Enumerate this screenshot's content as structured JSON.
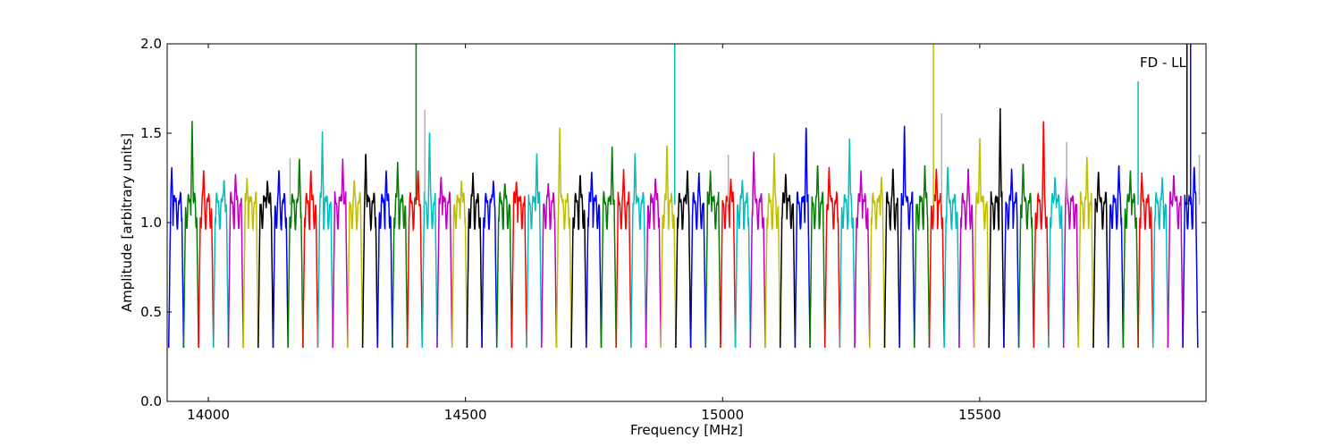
{
  "chart_data": {
    "type": "line",
    "title": "",
    "xlabel": "Frequency [MHz]",
    "ylabel": "Amplitude [arbitrary units]",
    "annotation": "FD - LL",
    "xlim": [
      13920,
      15940
    ],
    "ylim": [
      0.0,
      2.0
    ],
    "xticks": [
      14000,
      14500,
      15000,
      15500
    ],
    "xtick_labels": [
      "14000",
      "14500",
      "15000",
      "15500"
    ],
    "yticks": [
      0.0,
      0.5,
      1.0,
      1.5,
      2.0
    ],
    "ytick_labels": [
      "0.0",
      "0.5",
      "1.0",
      "1.5",
      "2.0"
    ],
    "grid": false,
    "legend": "none",
    "color_cycle": [
      "#0000ff",
      "#008000",
      "#ff0000",
      "#00bfbf",
      "#bf00bf",
      "#bfbf00",
      "#000000"
    ],
    "reference_line_color": "#b0b0b0",
    "series_note": "Repeating sub-band segments, each ~29 MHz wide: deep drop to ~0.3 at band edges, ~1.0-1.4 in-band with ripple; colors cycle blue, green, red, cyan, magenta, yellow, black.",
    "band_peaks": [
      {
        "x0": 13923,
        "x1": 13952,
        "peak": 1.31,
        "color": "#0000ff"
      },
      {
        "x0": 13952,
        "x1": 13981,
        "peak": 1.59,
        "color": "#008000"
      },
      {
        "x0": 13981,
        "x1": 14010,
        "peak": 1.31,
        "color": "#ff0000"
      },
      {
        "x0": 14010,
        "x1": 14039,
        "peak": 1.25,
        "color": "#00bfbf"
      },
      {
        "x0": 14039,
        "x1": 14068,
        "peak": 1.28,
        "color": "#bf00bf"
      },
      {
        "x0": 14068,
        "x1": 14097,
        "peak": 1.25,
        "color": "#bfbf00"
      },
      {
        "x0": 14097,
        "x1": 14126,
        "peak": 1.24,
        "color": "#000000"
      },
      {
        "x0": 14126,
        "x1": 14155,
        "peak": 1.31,
        "color": "#0000ff"
      },
      {
        "x0": 14155,
        "x1": 14184,
        "peak": 1.38,
        "color": "#008000"
      },
      {
        "x0": 14184,
        "x1": 14213,
        "peak": 1.3,
        "color": "#ff0000"
      },
      {
        "x0": 14213,
        "x1": 14242,
        "peak": 1.51,
        "color": "#00bfbf"
      },
      {
        "x0": 14242,
        "x1": 14271,
        "peak": 1.37,
        "color": "#bf00bf"
      },
      {
        "x0": 14271,
        "x1": 14300,
        "peak": 1.25,
        "color": "#bfbf00"
      },
      {
        "x0": 14300,
        "x1": 14329,
        "peak": 1.41,
        "color": "#000000"
      },
      {
        "x0": 14329,
        "x1": 14358,
        "peak": 1.3,
        "color": "#0000ff"
      },
      {
        "x0": 14358,
        "x1": 14387,
        "peak": 1.34,
        "color": "#008000"
      },
      {
        "x0": 14387,
        "x1": 14416,
        "peak": 1.3,
        "color": "#ff0000"
      },
      {
        "x0": 14416,
        "x1": 14445,
        "peak": 1.54,
        "color": "#00bfbf"
      },
      {
        "x0": 14445,
        "x1": 14474,
        "peak": 1.27,
        "color": "#bf00bf"
      },
      {
        "x0": 14474,
        "x1": 14503,
        "peak": 1.24,
        "color": "#bfbf00"
      },
      {
        "x0": 14503,
        "x1": 14532,
        "peak": 1.28,
        "color": "#000000"
      },
      {
        "x0": 14532,
        "x1": 14561,
        "peak": 1.24,
        "color": "#0000ff"
      },
      {
        "x0": 14561,
        "x1": 14590,
        "peak": 1.23,
        "color": "#008000"
      },
      {
        "x0": 14590,
        "x1": 14619,
        "peak": 1.24,
        "color": "#ff0000"
      },
      {
        "x0": 14619,
        "x1": 14648,
        "peak": 1.4,
        "color": "#00bfbf"
      },
      {
        "x0": 14648,
        "x1": 14677,
        "peak": 1.22,
        "color": "#bf00bf"
      },
      {
        "x0": 14677,
        "x1": 14706,
        "peak": 1.55,
        "color": "#bfbf00"
      },
      {
        "x0": 14706,
        "x1": 14735,
        "peak": 1.28,
        "color": "#000000"
      },
      {
        "x0": 14735,
        "x1": 14764,
        "peak": 1.3,
        "color": "#0000ff"
      },
      {
        "x0": 14764,
        "x1": 14793,
        "peak": 1.44,
        "color": "#008000"
      },
      {
        "x0": 14793,
        "x1": 14822,
        "peak": 1.3,
        "color": "#ff0000"
      },
      {
        "x0": 14822,
        "x1": 14851,
        "peak": 1.4,
        "color": "#00bfbf"
      },
      {
        "x0": 14851,
        "x1": 14880,
        "peak": 1.26,
        "color": "#bf00bf"
      },
      {
        "x0": 14880,
        "x1": 14909,
        "peak": 1.46,
        "color": "#bfbf00"
      },
      {
        "x0": 14909,
        "x1": 14938,
        "peak": 1.3,
        "color": "#000000"
      },
      {
        "x0": 14938,
        "x1": 14967,
        "peak": 1.28,
        "color": "#0000ff"
      },
      {
        "x0": 14967,
        "x1": 14996,
        "peak": 1.3,
        "color": "#008000"
      },
      {
        "x0": 14996,
        "x1": 15025,
        "peak": 1.26,
        "color": "#ff0000"
      },
      {
        "x0": 15025,
        "x1": 15054,
        "peak": 1.25,
        "color": "#00bfbf"
      },
      {
        "x0": 15054,
        "x1": 15083,
        "peak": 1.41,
        "color": "#bf00bf"
      },
      {
        "x0": 15083,
        "x1": 15112,
        "peak": 1.39,
        "color": "#bfbf00"
      },
      {
        "x0": 15112,
        "x1": 15141,
        "peak": 1.28,
        "color": "#000000"
      },
      {
        "x0": 15141,
        "x1": 15170,
        "peak": 1.57,
        "color": "#0000ff"
      },
      {
        "x0": 15170,
        "x1": 15199,
        "peak": 1.34,
        "color": "#008000"
      },
      {
        "x0": 15199,
        "x1": 15228,
        "peak": 1.32,
        "color": "#ff0000"
      },
      {
        "x0": 15228,
        "x1": 15257,
        "peak": 1.47,
        "color": "#00bfbf"
      },
      {
        "x0": 15257,
        "x1": 15286,
        "peak": 1.3,
        "color": "#bf00bf"
      },
      {
        "x0": 15286,
        "x1": 15315,
        "peak": 1.27,
        "color": "#bfbf00"
      },
      {
        "x0": 15315,
        "x1": 15344,
        "peak": 1.32,
        "color": "#000000"
      },
      {
        "x0": 15344,
        "x1": 15373,
        "peak": 1.56,
        "color": "#0000ff"
      },
      {
        "x0": 15373,
        "x1": 15402,
        "peak": 1.32,
        "color": "#008000"
      },
      {
        "x0": 15402,
        "x1": 15431,
        "peak": 1.31,
        "color": "#ff0000"
      },
      {
        "x0": 15431,
        "x1": 15460,
        "peak": 1.33,
        "color": "#00bfbf"
      },
      {
        "x0": 15460,
        "x1": 15489,
        "peak": 1.32,
        "color": "#bf00bf"
      },
      {
        "x0": 15489,
        "x1": 15518,
        "peak": 1.49,
        "color": "#bfbf00"
      },
      {
        "x0": 15518,
        "x1": 15547,
        "peak": 1.64,
        "color": "#000000"
      },
      {
        "x0": 15547,
        "x1": 15576,
        "peak": 1.31,
        "color": "#0000ff"
      },
      {
        "x0": 15576,
        "x1": 15605,
        "peak": 1.35,
        "color": "#008000"
      },
      {
        "x0": 15605,
        "x1": 15634,
        "peak": 1.61,
        "color": "#ff0000"
      },
      {
        "x0": 15634,
        "x1": 15663,
        "peak": 1.26,
        "color": "#00bfbf"
      },
      {
        "x0": 15663,
        "x1": 15692,
        "peak": 1.25,
        "color": "#bf00bf"
      },
      {
        "x0": 15692,
        "x1": 15721,
        "peak": 1.38,
        "color": "#bfbf00"
      },
      {
        "x0": 15721,
        "x1": 15750,
        "peak": 1.3,
        "color": "#000000"
      },
      {
        "x0": 15750,
        "x1": 15779,
        "peak": 1.34,
        "color": "#0000ff"
      },
      {
        "x0": 15779,
        "x1": 15808,
        "peak": 1.3,
        "color": "#008000"
      },
      {
        "x0": 15808,
        "x1": 15837,
        "peak": 1.28,
        "color": "#ff0000"
      },
      {
        "x0": 15837,
        "x1": 15866,
        "peak": 1.26,
        "color": "#00bfbf"
      },
      {
        "x0": 15866,
        "x1": 15895,
        "peak": 1.28,
        "color": "#bf00bf"
      },
      {
        "x0": 15895,
        "x1": 15924,
        "peak": 1.33,
        "color": "#0000ff"
      }
    ],
    "spikes": [
      {
        "x": 14404,
        "y": 2.0,
        "color": "#008000"
      },
      {
        "x": 14421,
        "y": 1.63,
        "color": "#b0b0b0"
      },
      {
        "x": 14159,
        "y": 1.36,
        "color": "#b0b0b0"
      },
      {
        "x": 14907,
        "y": 2.0,
        "color": "#00bfbf"
      },
      {
        "x": 15011,
        "y": 1.38,
        "color": "#b0b0b0"
      },
      {
        "x": 15410,
        "y": 2.0,
        "color": "#bfbf00"
      },
      {
        "x": 15426,
        "y": 1.61,
        "color": "#b0b0b0"
      },
      {
        "x": 15669,
        "y": 1.45,
        "color": "#b0b0b0"
      },
      {
        "x": 15808,
        "y": 1.79,
        "color": "#00bfbf"
      },
      {
        "x": 15903,
        "y": 2.0,
        "color": "#000000"
      },
      {
        "x": 15910,
        "y": 2.0,
        "color": "#0000ff"
      },
      {
        "x": 15927,
        "y": 1.38,
        "color": "#b0b0b0"
      }
    ]
  }
}
